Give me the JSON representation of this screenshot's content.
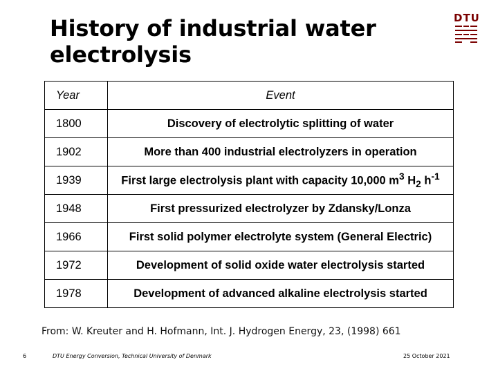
{
  "title": {
    "line1": "History of industrial water",
    "line2": "electrolysis"
  },
  "logo": {
    "text": "DTU",
    "icon": "dtu-logo-icon",
    "color": "#7a0000"
  },
  "table": {
    "headers": {
      "year": "Year",
      "event": "Event"
    },
    "rows": [
      {
        "year": "1800",
        "event": "Discovery of electrolytic splitting of water"
      },
      {
        "year": "1902",
        "event": "More than 400 industrial electrolyzers in operation"
      },
      {
        "year": "1939",
        "event_pre": "First large electrolysis plant with capacity 10,000 m",
        "event_sup": "3",
        "event_mid": " H",
        "event_sub": "2",
        "event_mid2": " h",
        "event_sup2": "-1"
      },
      {
        "year": "1948",
        "event": "First pressurized electrolyzer by Zdansky/Lonza"
      },
      {
        "year": "1966",
        "event": "First solid polymer electrolyte system (General Electric)"
      },
      {
        "year": "1972",
        "event": "Development of solid oxide water electrolysis started"
      },
      {
        "year": "1978",
        "event": "Development of advanced alkaline electrolysis started"
      }
    ]
  },
  "source": {
    "prefix": "From: W. Kreuter and H. Hofmann, Int. J. Hydrogen Energy, ",
    "volume": "23",
    "suffix": ", (1998) 661"
  },
  "footer": {
    "page_number": "6",
    "department": "DTU Energy Conversion, Technical University of Denmark",
    "date": "25 October 2021"
  }
}
